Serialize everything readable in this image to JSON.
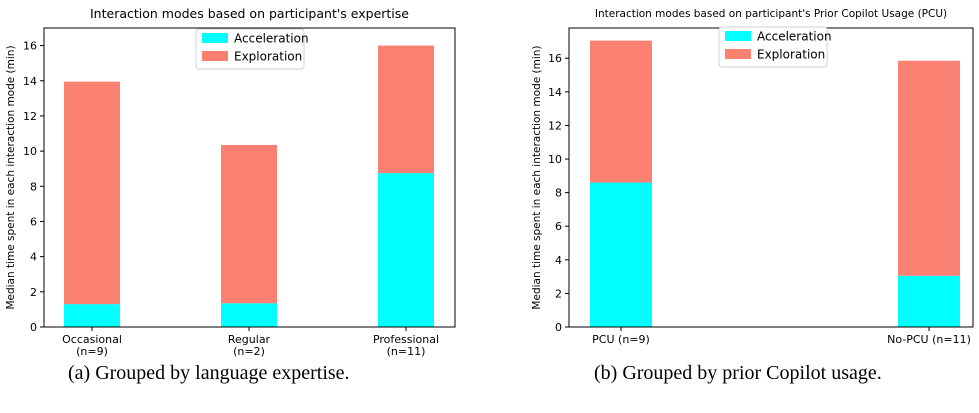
{
  "captions": {
    "a": "(a) Grouped by language expertise.",
    "b": "(b) Grouped by prior Copilot usage."
  },
  "chart_data": [
    {
      "type": "bar",
      "stacked": true,
      "title": "Interaction modes based on participant's expertise",
      "ylabel": "Median time spent in each interaction mode (min)",
      "xlabel": "",
      "categories": [
        "Occasional\n(n=9)",
        "Regular\n(n=2)",
        "Professional\n(n=11)"
      ],
      "series": [
        {
          "name": "Acceleration",
          "color": "#00ffff",
          "values": [
            1.3,
            1.35,
            8.75
          ]
        },
        {
          "name": "Exploration",
          "color": "#fa8072",
          "values": [
            12.65,
            9.0,
            7.25
          ]
        }
      ],
      "ylim": [
        0,
        17
      ],
      "yticks": [
        0,
        2,
        4,
        6,
        8,
        10,
        12,
        14,
        16
      ],
      "legend_position": "top-center",
      "grid": false
    },
    {
      "type": "bar",
      "stacked": true,
      "title": "Interaction modes based on participant's Prior Copilot Usage (PCU)",
      "ylabel": "Median time spent in each interaction mode (min)",
      "xlabel": "",
      "categories": [
        "PCU (n=9)",
        "No-PCU (n=11)"
      ],
      "series": [
        {
          "name": "Acceleration",
          "color": "#00ffff",
          "values": [
            8.6,
            3.05
          ]
        },
        {
          "name": "Exploration",
          "color": "#fa8072",
          "values": [
            8.45,
            12.8
          ]
        }
      ],
      "ylim": [
        0,
        17.8
      ],
      "yticks": [
        0,
        2,
        4,
        6,
        8,
        10,
        12,
        14,
        16
      ],
      "legend_position": "top-center",
      "grid": false
    }
  ]
}
